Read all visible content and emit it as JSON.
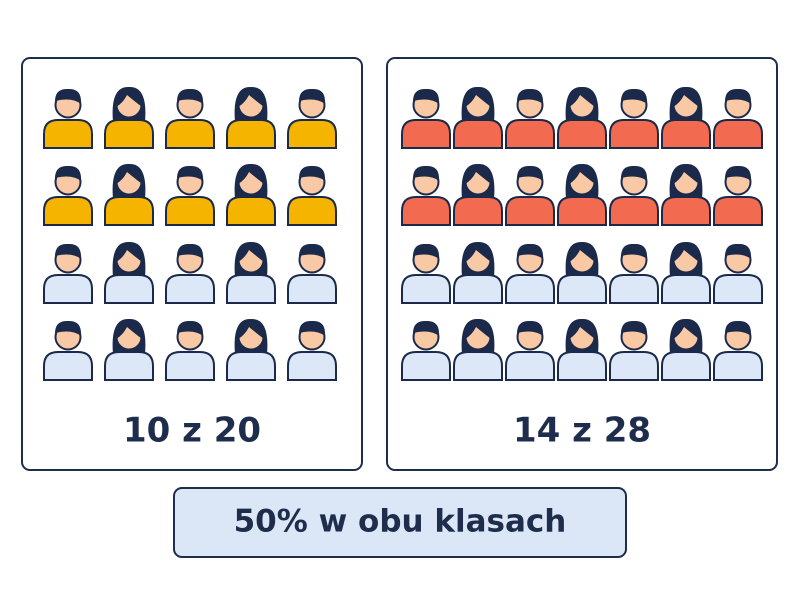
{
  "panels": [
    {
      "label": "10 z 20"
    },
    {
      "label": "14 z 28"
    }
  ],
  "summary": "50% w obu klasach"
}
